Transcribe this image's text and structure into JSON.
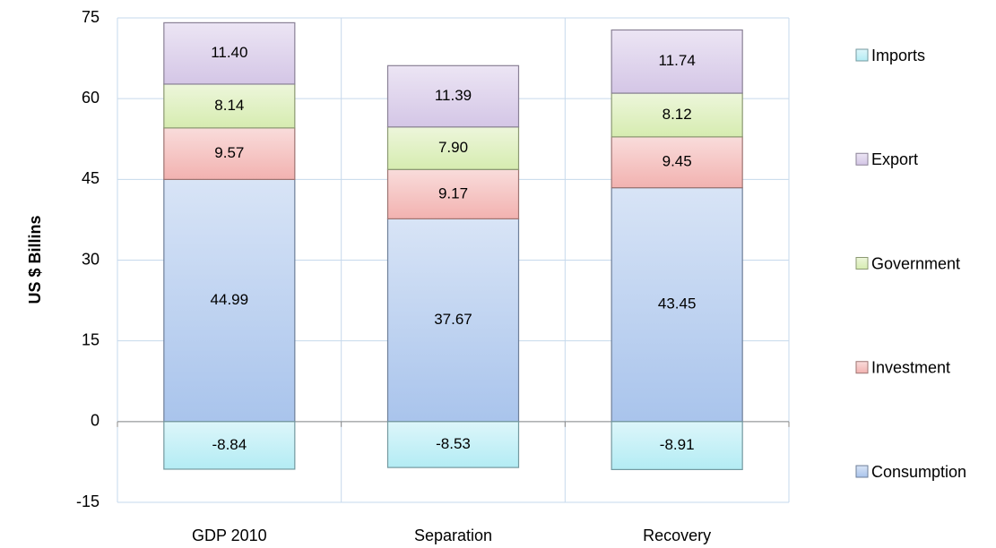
{
  "chart_data": {
    "type": "stacked-bar",
    "y_label": "US $ Billins",
    "categories": [
      "GDP 2010",
      "Separation",
      "Recovery"
    ],
    "series": [
      {
        "name": "Consumption",
        "color": "#a9c4ec",
        "values": [
          44.99,
          37.67,
          43.45
        ],
        "value_labels": [
          "44.99",
          "37.67",
          "43.45"
        ]
      },
      {
        "name": "Investment",
        "color": "#f2b2b0",
        "values": [
          9.57,
          9.17,
          9.45
        ],
        "value_labels": [
          "9.57",
          "9.17",
          "9.45"
        ]
      },
      {
        "name": "Government",
        "color": "#d6ecb0",
        "values": [
          8.14,
          7.9,
          8.12
        ],
        "value_labels": [
          "8.14",
          "7.90",
          "8.12"
        ]
      },
      {
        "name": "Export",
        "color": "#d4c6e6",
        "values": [
          11.4,
          11.39,
          11.74
        ],
        "value_labels": [
          "11.40",
          "11.39",
          "11.74"
        ]
      },
      {
        "name": "Imports",
        "color": "#b3ecf4",
        "values": [
          -8.84,
          -8.53,
          -8.91
        ],
        "value_labels": [
          "-8.84",
          "-8.53",
          "-8.91"
        ]
      }
    ],
    "ylim": [
      -15,
      75
    ],
    "yticks": [
      -15,
      0,
      15,
      30,
      45,
      60,
      75
    ],
    "grid": true,
    "legend": "right"
  }
}
